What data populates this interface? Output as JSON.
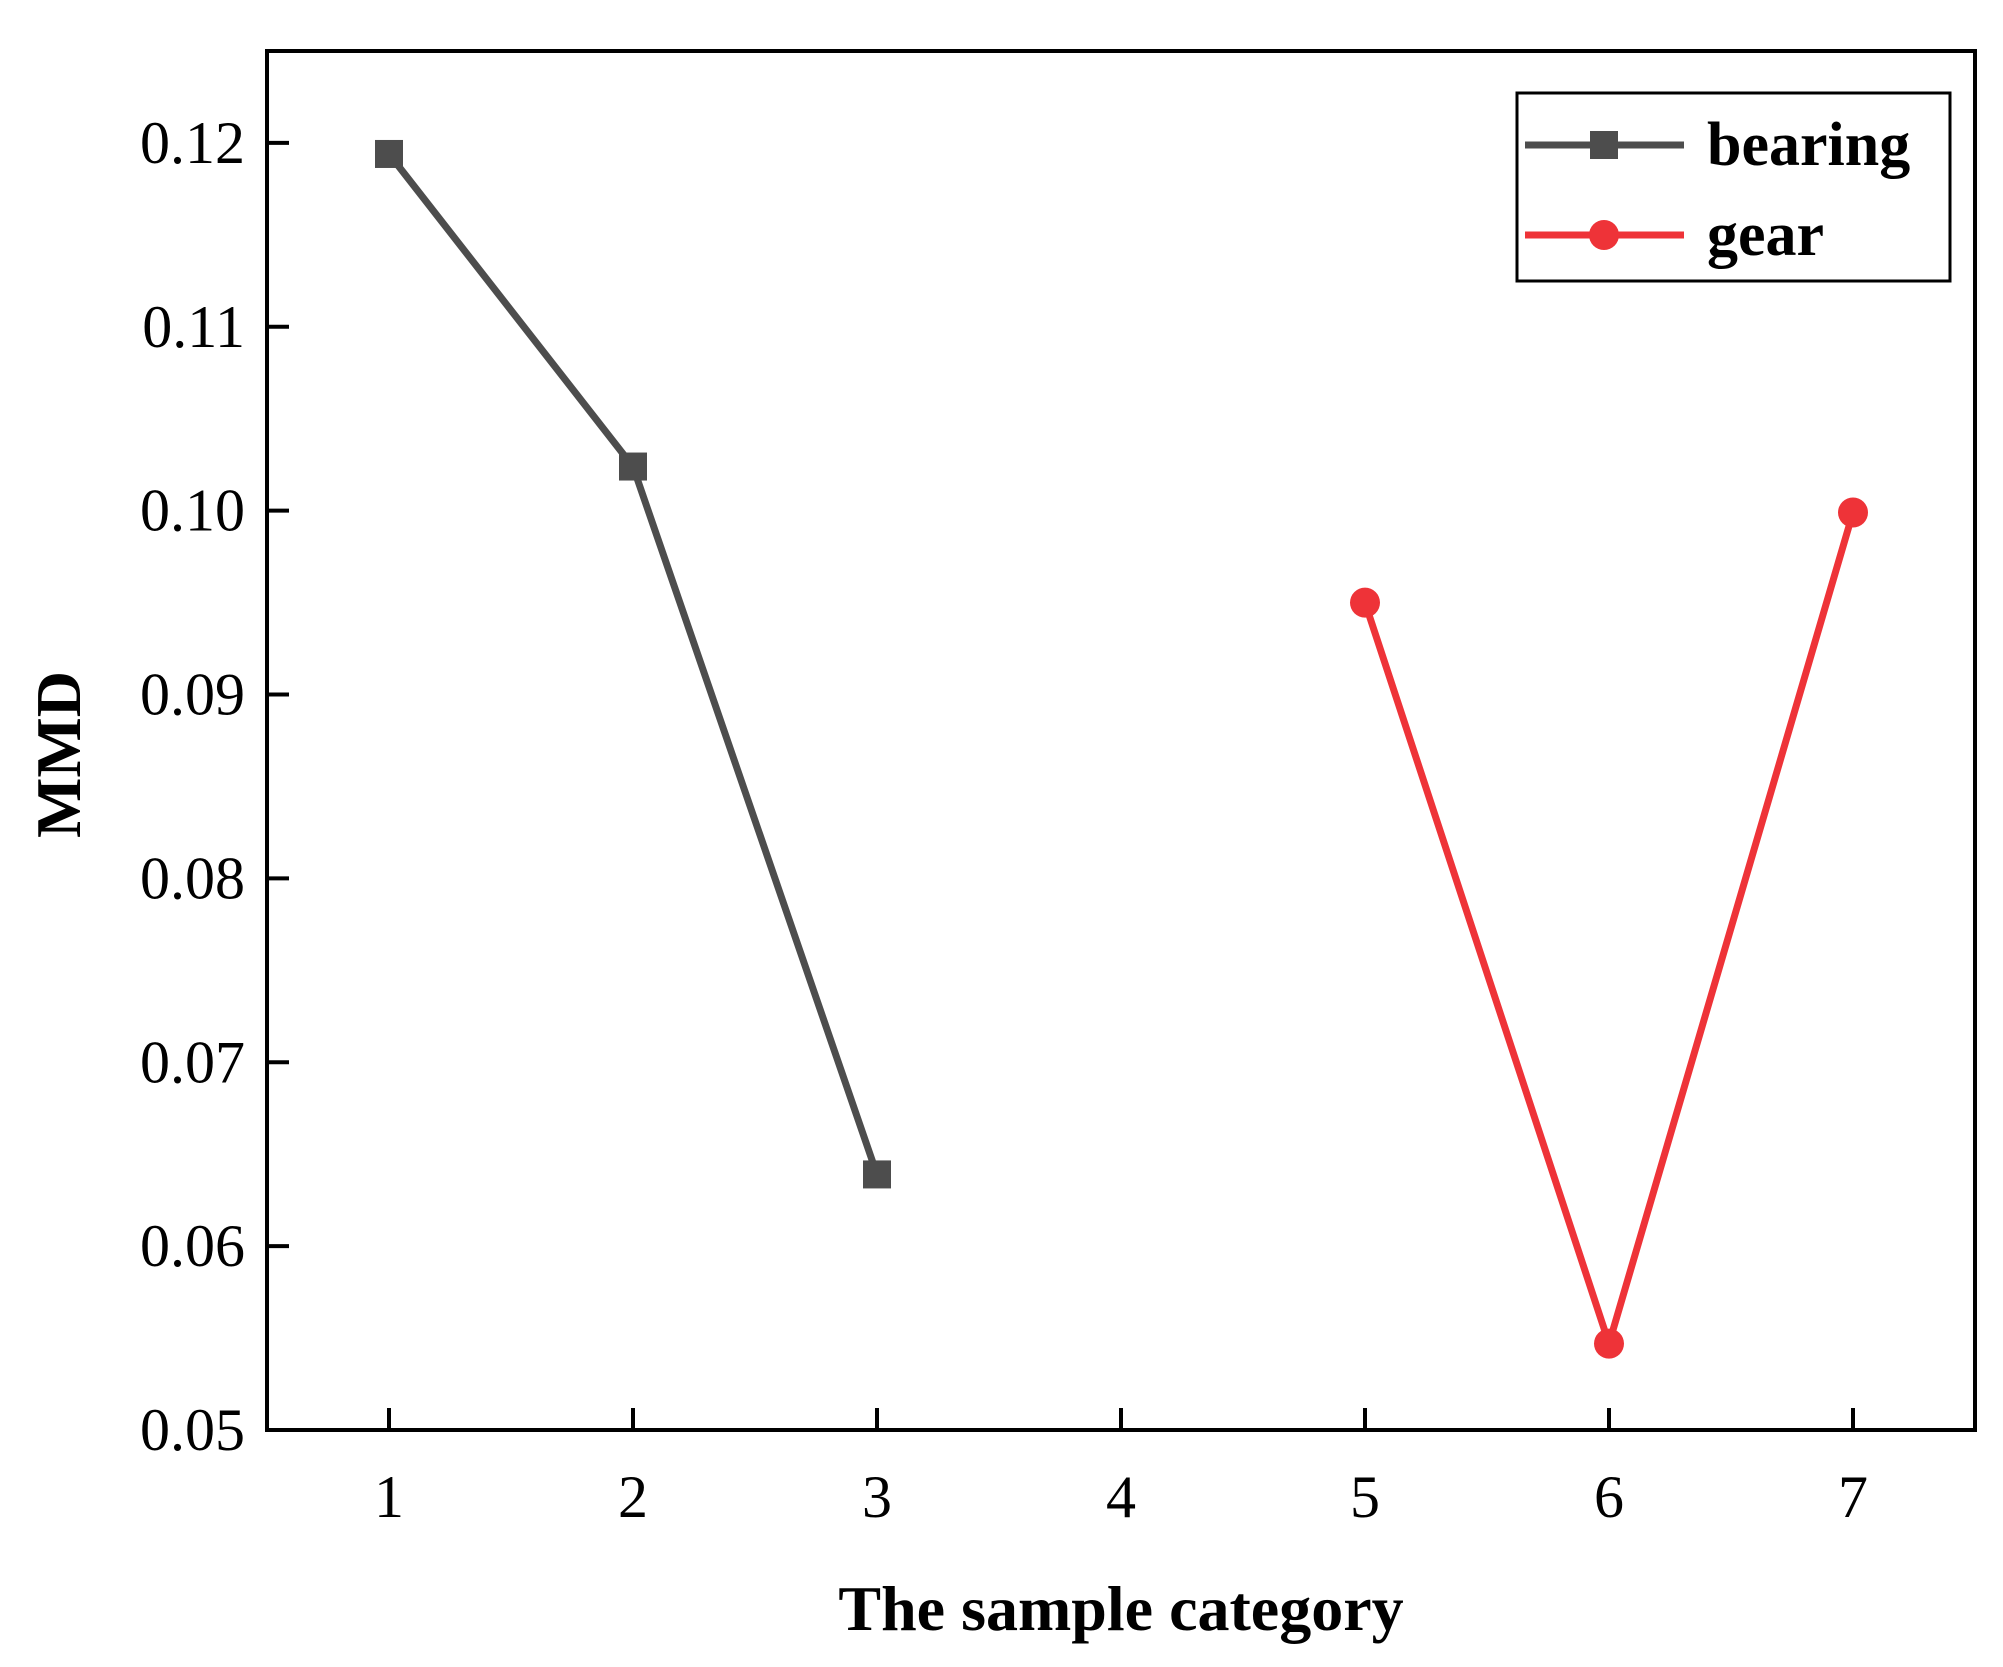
{
  "chart_data": {
    "type": "line",
    "title": "",
    "xlabel": "The sample category",
    "ylabel": "MMD",
    "xlim": [
      0.5,
      7.5
    ],
    "ylim": [
      0.05,
      0.125
    ],
    "x_ticks": [
      1,
      2,
      3,
      4,
      5,
      6,
      7
    ],
    "x_tick_labels": [
      "1",
      "2",
      "3",
      "4",
      "5",
      "6",
      "7"
    ],
    "y_ticks": [
      0.05,
      0.06,
      0.07,
      0.08,
      0.09,
      0.1,
      0.11,
      0.12
    ],
    "y_tick_labels": [
      "0.05",
      "0.06",
      "0.07",
      "0.08",
      "0.09",
      "0.10",
      "0.11",
      "0.12"
    ],
    "grid": false,
    "legend_position": "top-right",
    "series": [
      {
        "name": "bearing",
        "color": "#4d4d4d",
        "marker": "square",
        "x": [
          1,
          2,
          3
        ],
        "y": [
          0.1194,
          0.1024,
          0.0639
        ]
      },
      {
        "name": "gear",
        "color": "#ee3338",
        "marker": "circle",
        "x": [
          5,
          6,
          7
        ],
        "y": [
          0.095,
          0.0547,
          0.0999
        ]
      }
    ]
  }
}
